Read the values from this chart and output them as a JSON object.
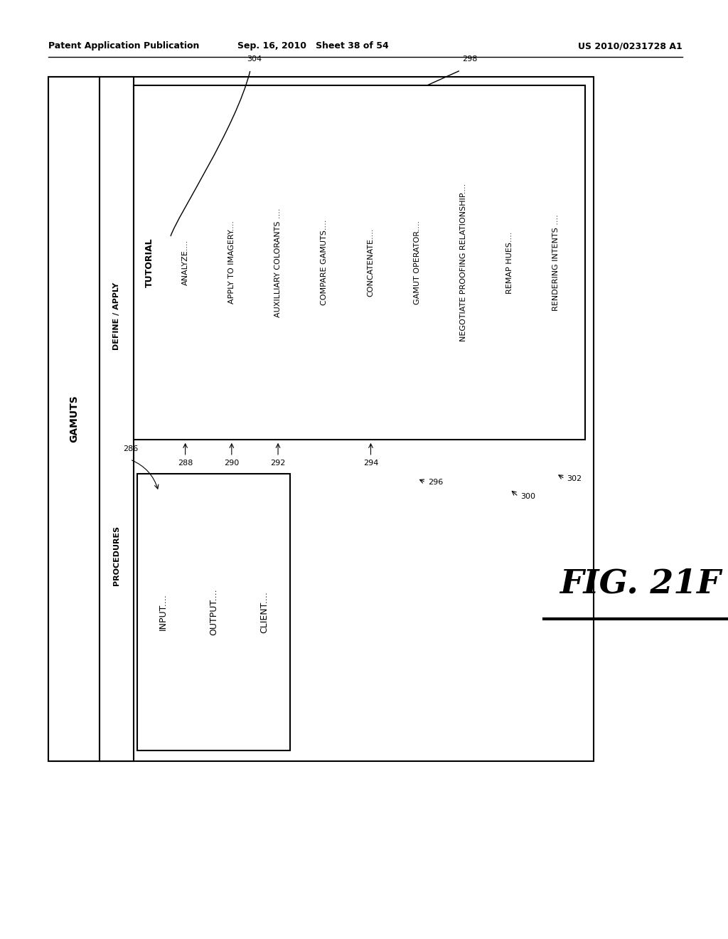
{
  "bg_color": "#ffffff",
  "header_left": "Patent Application Publication",
  "header_center": "Sep. 16, 2010   Sheet 38 of 54",
  "header_right": "US 2010/0231728 A1",
  "fig_label": "FIG. 21F",
  "gamuts_label": "GAMUTS",
  "define_apply_label": "DEFINE / APPLY",
  "procedures_label": "PROCEDURES",
  "tutorial_label": "TUTORIAL",
  "gamuts_items": [
    "INPUT....",
    "OUTPUT....",
    "CLIENT...."
  ],
  "procedures_items": [
    "ANALYZE....",
    "APPLY TO IMAGERY....",
    "AUXILLIARY COLORANTS ....",
    "COMPARE GAMUTS....",
    "CONCATENATE....",
    "GAMUT OPERATOR....",
    "NEGOTIATE PROOFING RELATIONSHIP....",
    "REMAP HUES....",
    "RENDERING INTENTS ...."
  ],
  "ref_288": "288",
  "ref_290": "290",
  "ref_292": "292",
  "ref_294": "294",
  "ref_296": "296",
  "ref_298": "298",
  "ref_300": "300",
  "ref_302": "302",
  "ref_304": "304",
  "ref_286": "286"
}
